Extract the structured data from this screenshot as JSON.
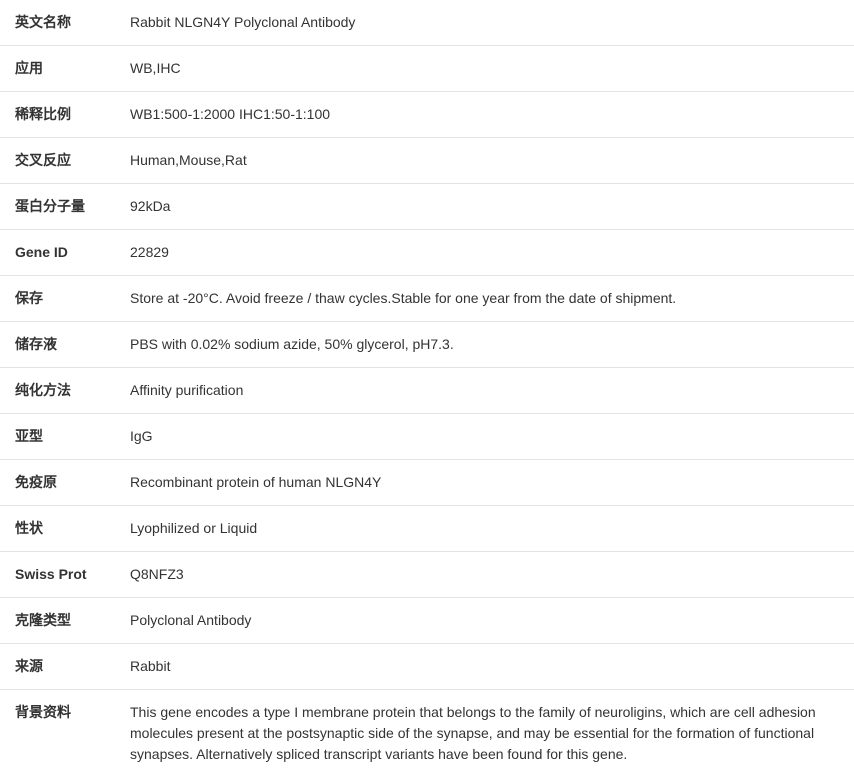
{
  "rows": [
    {
      "label": "英文名称",
      "value": "Rabbit NLGN4Y Polyclonal Antibody"
    },
    {
      "label": "应用",
      "value": "WB,IHC"
    },
    {
      "label": "稀释比例",
      "value": "WB1:500-1:2000 IHC1:50-1:100"
    },
    {
      "label": "交叉反应",
      "value": "Human,Mouse,Rat"
    },
    {
      "label": "蛋白分子量",
      "value": "92kDa"
    },
    {
      "label": "Gene ID",
      "value": "22829"
    },
    {
      "label": "保存",
      "value": "Store at -20°C. Avoid freeze / thaw cycles.Stable for one year from the date of shipment."
    },
    {
      "label": "储存液",
      "value": "PBS with 0.02% sodium azide, 50% glycerol, pH7.3."
    },
    {
      "label": "纯化方法",
      "value": "Affinity purification"
    },
    {
      "label": "亚型",
      "value": "IgG"
    },
    {
      "label": "免疫原",
      "value": "Recombinant protein of human NLGN4Y"
    },
    {
      "label": "性状",
      "value": "Lyophilized or Liquid"
    },
    {
      "label": "Swiss Prot",
      "value": "Q8NFZ3"
    },
    {
      "label": "克隆类型",
      "value": "Polyclonal Antibody"
    },
    {
      "label": "来源",
      "value": "Rabbit"
    },
    {
      "label": "背景资料",
      "value": "This gene encodes a type I membrane protein that belongs to the family of neuroligins, which are cell adhesion molecules present at the postsynaptic side of the synapse, and may be essential for the formation of functional synapses. Alternatively spliced transcript variants have been found for this gene."
    }
  ]
}
